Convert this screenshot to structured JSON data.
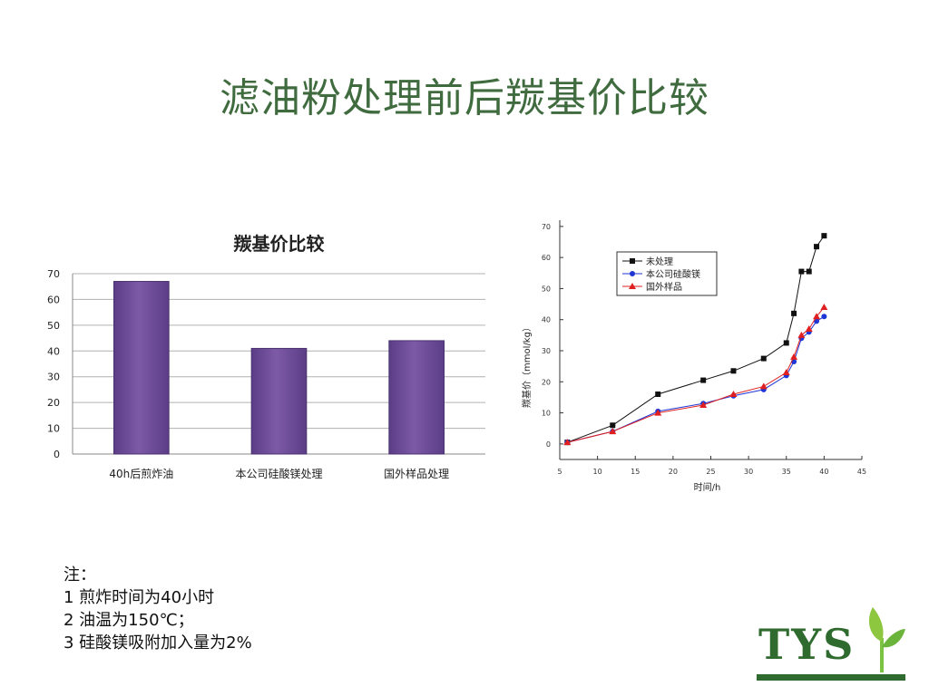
{
  "slide": {
    "title": "滤油粉处理前后羰基价比较"
  },
  "notes": [
    "注：",
    "1 煎炸时间为40小时",
    "2 油温为150℃；",
    "3 硅酸镁吸附加入量为2%"
  ],
  "logo": {
    "text": "TYS",
    "color": "#2f6b2e"
  },
  "chart_data": [
    {
      "type": "bar",
      "title": "羰基价比较",
      "categories": [
        "40h后煎炸油",
        "本公司硅酸镁处理",
        "国外样品处理"
      ],
      "values": [
        67,
        41,
        44
      ],
      "ylim": [
        0,
        70
      ],
      "yticks": [
        0,
        10,
        20,
        30,
        40,
        50,
        60,
        70
      ],
      "grid": true,
      "colors": {
        "bar": "#7d5aa6",
        "bar_edge": "#4b3270",
        "grid": "#b0b0b0"
      }
    },
    {
      "type": "line",
      "xlabel": "时间/h",
      "ylabel": "羰基价（mmol/kg）",
      "xlim": [
        5,
        45
      ],
      "ylim": [
        -5,
        72
      ],
      "xticks": [
        5,
        10,
        15,
        20,
        25,
        30,
        35,
        40,
        45
      ],
      "yticks": [
        0,
        10,
        20,
        30,
        40,
        50,
        60,
        70
      ],
      "legend": "top-left",
      "series": [
        {
          "name": "未处理",
          "color": "#111111",
          "marker": "square",
          "x": [
            6,
            12,
            18,
            24,
            28,
            32,
            35,
            36,
            37,
            38,
            39,
            40
          ],
          "y": [
            0.5,
            6,
            16,
            20.5,
            23.5,
            27.5,
            32.5,
            42,
            55.5,
            55.5,
            63.5,
            67
          ]
        },
        {
          "name": "本公司硅酸镁",
          "color": "#1f35d6",
          "marker": "circle",
          "x": [
            6,
            12,
            18,
            24,
            28,
            32,
            35,
            36,
            37,
            38,
            39,
            40
          ],
          "y": [
            0.5,
            4,
            10.5,
            13,
            15.5,
            17.5,
            22,
            26.5,
            34,
            36,
            39.5,
            41
          ]
        },
        {
          "name": "国外样品",
          "color": "#e02020",
          "marker": "triangle",
          "x": [
            6,
            12,
            18,
            24,
            28,
            32,
            35,
            36,
            37,
            38,
            39,
            40
          ],
          "y": [
            0.5,
            4,
            10,
            12.5,
            16,
            18.5,
            23,
            28,
            35,
            37,
            41,
            44
          ]
        }
      ]
    }
  ]
}
